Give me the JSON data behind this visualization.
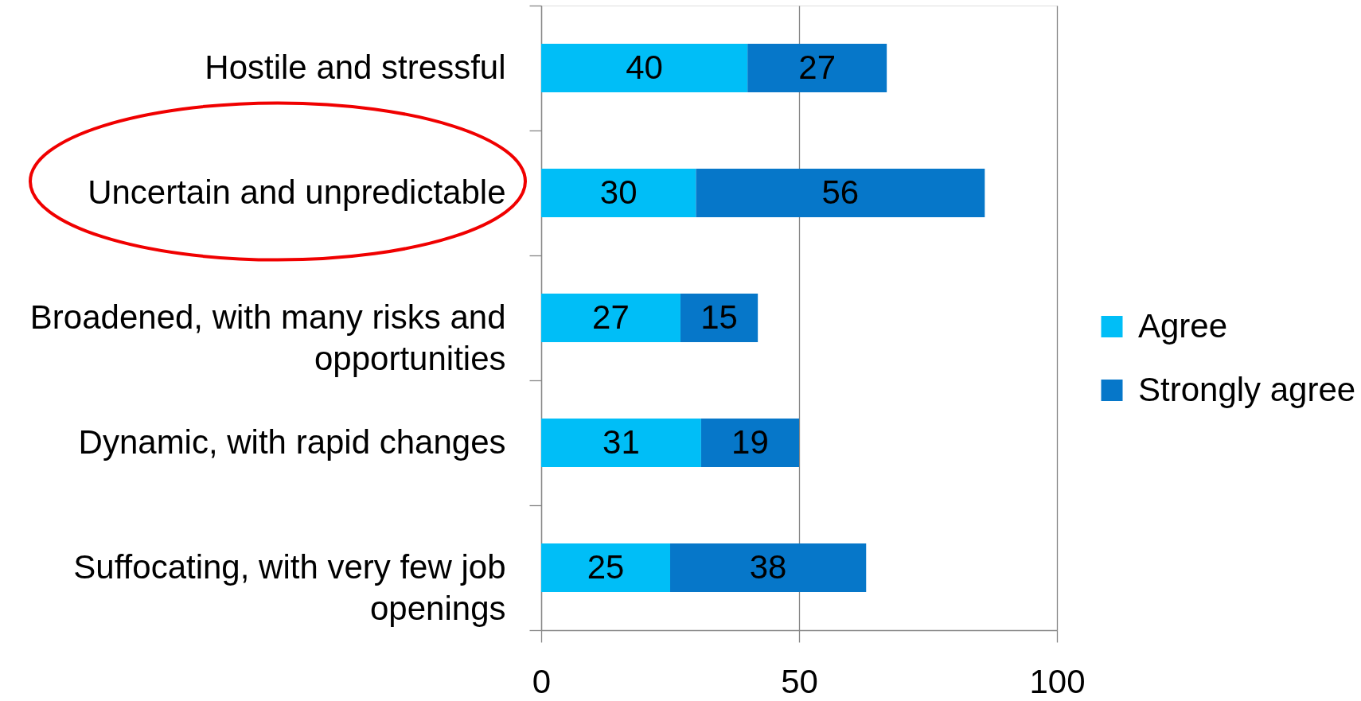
{
  "chart_data": {
    "type": "bar",
    "orientation": "horizontal",
    "stacked": true,
    "categories": [
      "Hostile and stressful",
      "Uncertain and unpredictable",
      "Broadened, with many risks and opportunities",
      "Dynamic, with rapid changes",
      "Suffocating, with very few job openings"
    ],
    "series": [
      {
        "name": "Agree",
        "color": "#00bef7",
        "values": [
          40,
          30,
          27,
          31,
          25
        ]
      },
      {
        "name": "Strongly agree",
        "color": "#0677c9",
        "values": [
          27,
          56,
          15,
          19,
          38
        ]
      }
    ],
    "xlim": [
      0,
      100
    ],
    "xticks": [
      0,
      50,
      100
    ],
    "grid": "x",
    "legend": "right",
    "data_labels": true
  }
}
